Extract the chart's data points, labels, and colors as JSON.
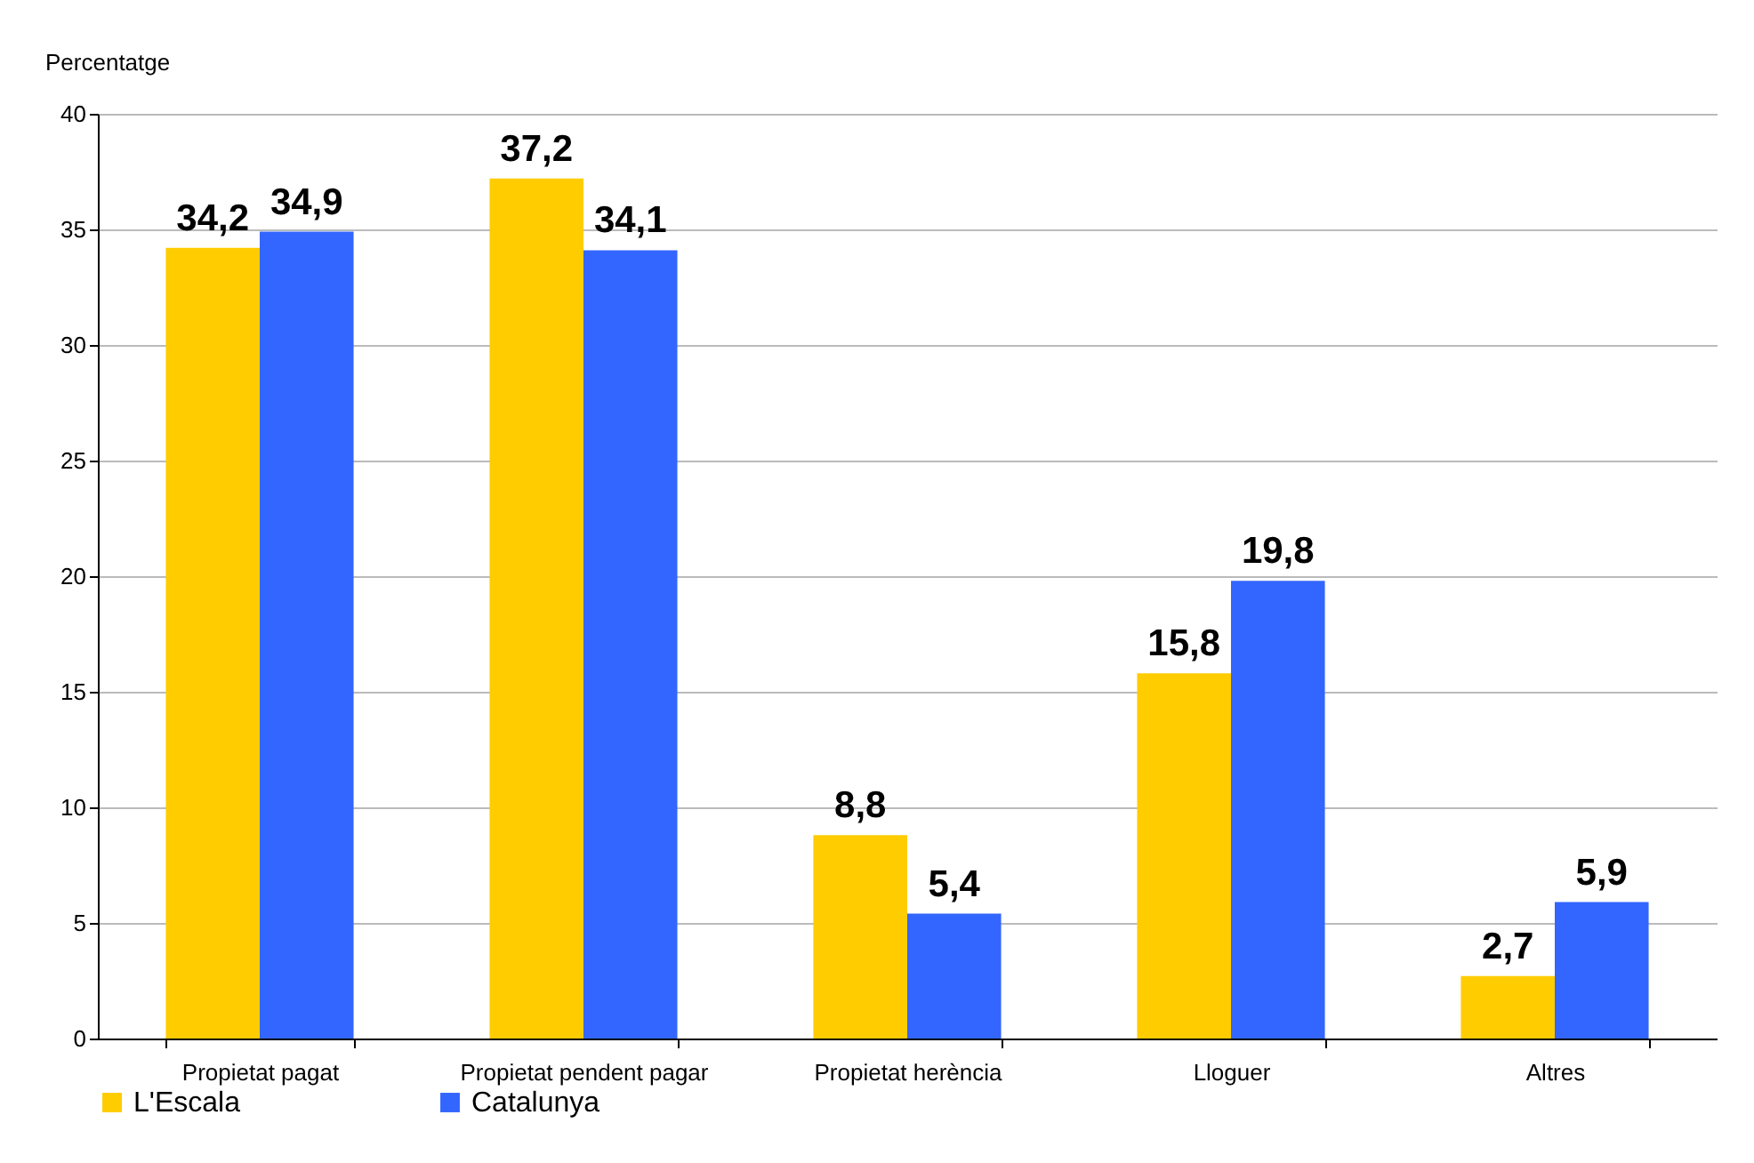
{
  "chart_data": {
    "type": "bar",
    "ylabel": "Percentatge",
    "categories": [
      "Propietat pagat",
      "Propietat pendent pagar",
      "Propietat herència",
      "Lloguer",
      "Altres"
    ],
    "series": [
      {
        "name": "L'Escala",
        "color": "#ffcc00",
        "values": [
          34.2,
          37.2,
          8.8,
          15.8,
          2.7
        ],
        "value_labels": [
          "34,2",
          "37,2",
          "8,8",
          "15,8",
          "2,7"
        ]
      },
      {
        "name": "Catalunya",
        "color": "#3366ff",
        "values": [
          34.9,
          34.1,
          5.4,
          19.8,
          5.9
        ],
        "value_labels": [
          "34,9",
          "34,1",
          "5,4",
          "19,8",
          "5,9"
        ]
      }
    ],
    "ylim": [
      0,
      40
    ],
    "yticks": [
      0,
      5,
      10,
      15,
      20,
      25,
      30,
      35,
      40
    ],
    "grid": "y",
    "legend": "bottom"
  }
}
